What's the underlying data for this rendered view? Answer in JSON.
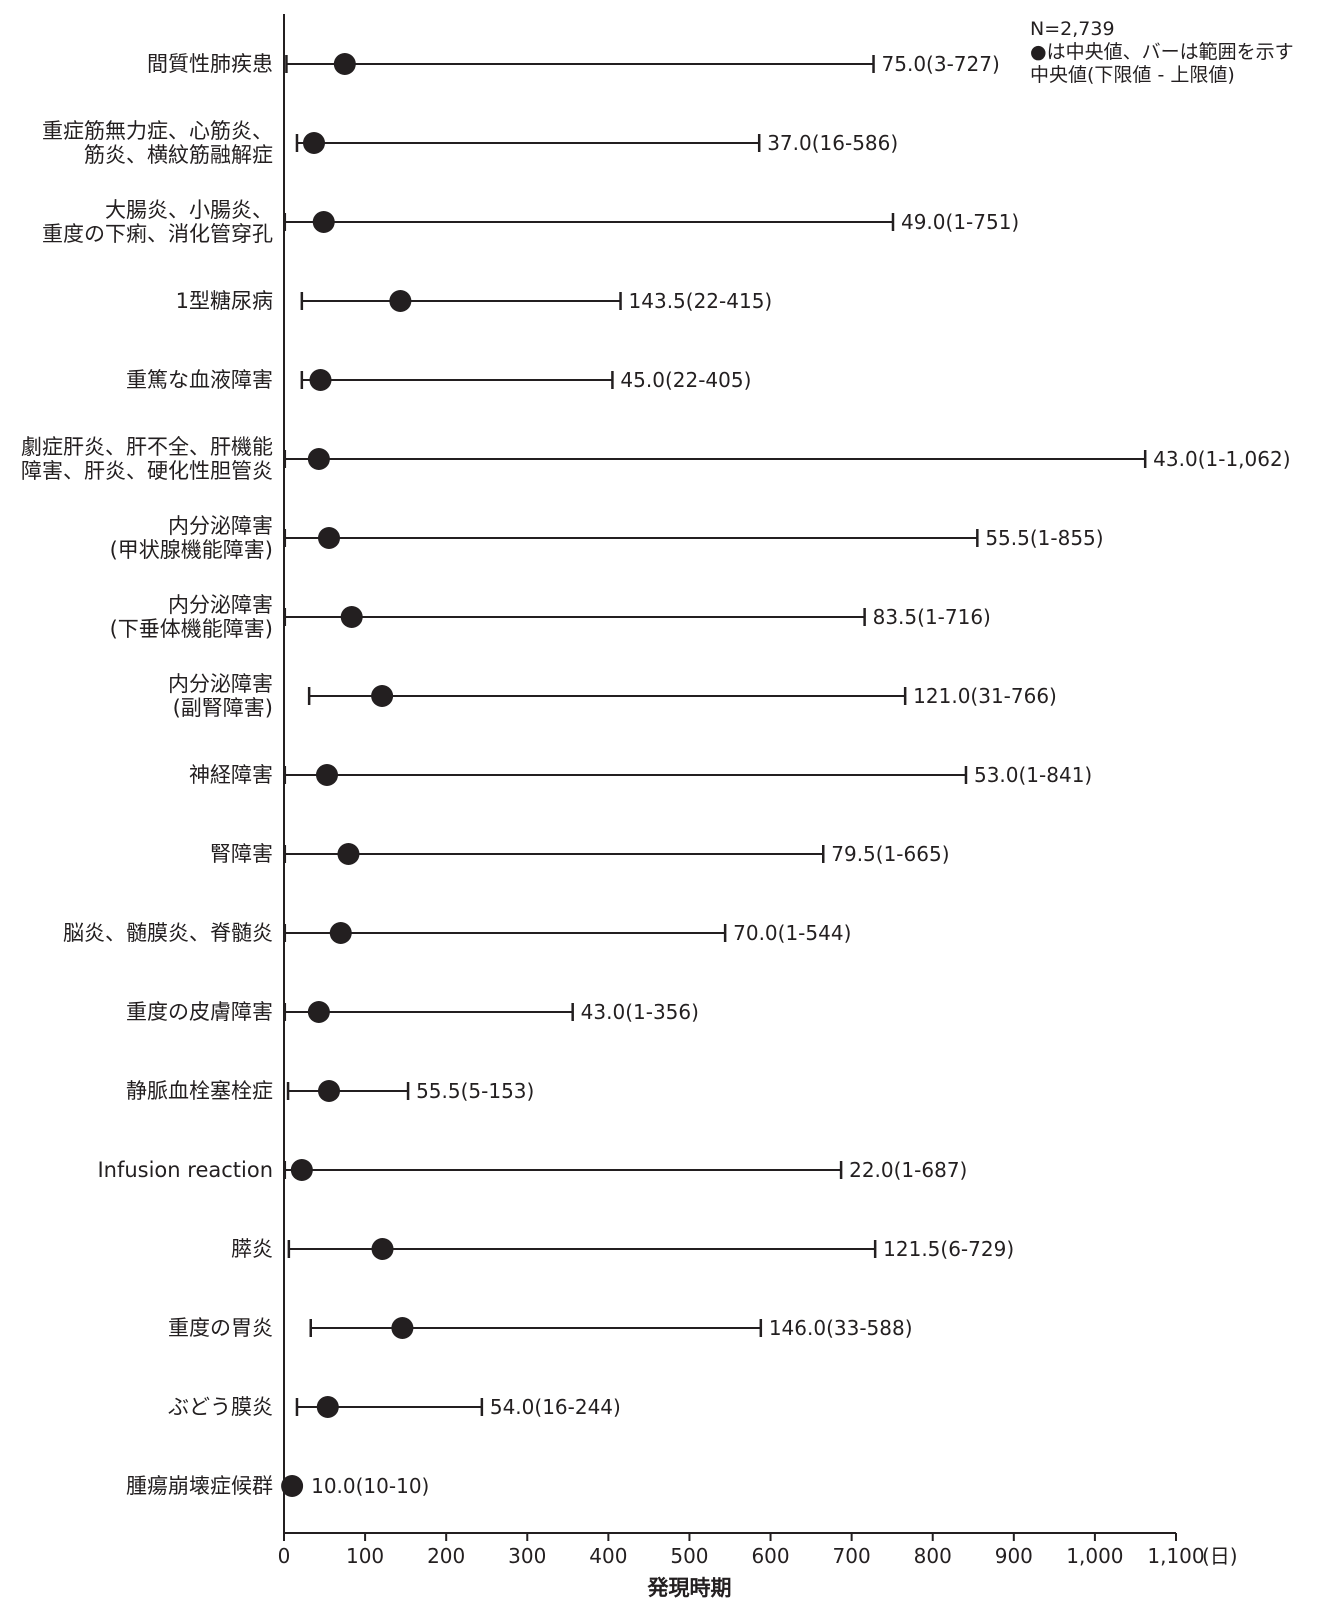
{
  "chart_data": {
    "type": "range-dot",
    "title": "",
    "xlabel": "発現時期",
    "xunit": "(日)",
    "xlim": [
      0,
      1100
    ],
    "xticks": [
      0,
      100,
      200,
      300,
      400,
      500,
      600,
      700,
      800,
      900,
      1000,
      1100
    ],
    "xtick_labels": [
      "0",
      "100",
      "200",
      "300",
      "400",
      "500",
      "600",
      "700",
      "800",
      "900",
      "1,000",
      "1,100"
    ],
    "legend": {
      "n": "N=2,739",
      "marker_note": "●は中央値、バーは範囲を示す",
      "format_note": "中央値(下限値 - 上限値)"
    },
    "rows": [
      {
        "label": [
          "間質性肺疾患"
        ],
        "median": 75.0,
        "min": 3,
        "max": 727,
        "text": "75.0(3-727)"
      },
      {
        "label": [
          "重症筋無力症、心筋炎、",
          "筋炎、横紋筋融解症"
        ],
        "median": 37.0,
        "min": 16,
        "max": 586,
        "text": "37.0(16-586)"
      },
      {
        "label": [
          "大腸炎、小腸炎、",
          "重度の下痢、消化管穿孔"
        ],
        "median": 49.0,
        "min": 1,
        "max": 751,
        "text": "49.0(1-751)"
      },
      {
        "label": [
          "1型糖尿病"
        ],
        "median": 143.5,
        "min": 22,
        "max": 415,
        "text": "143.5(22-415)"
      },
      {
        "label": [
          "重篤な血液障害"
        ],
        "median": 45.0,
        "min": 22,
        "max": 405,
        "text": "45.0(22-405)"
      },
      {
        "label": [
          "劇症肝炎、肝不全、肝機能",
          "障害、肝炎、硬化性胆管炎"
        ],
        "median": 43.0,
        "min": 1,
        "max": 1062,
        "text": "43.0(1-1,062)"
      },
      {
        "label": [
          "内分泌障害",
          "(甲状腺機能障害)"
        ],
        "median": 55.5,
        "min": 1,
        "max": 855,
        "text": "55.5(1-855)"
      },
      {
        "label": [
          "内分泌障害",
          "(下垂体機能障害)"
        ],
        "median": 83.5,
        "min": 1,
        "max": 716,
        "text": "83.5(1-716)"
      },
      {
        "label": [
          "内分泌障害",
          "(副腎障害)"
        ],
        "median": 121.0,
        "min": 31,
        "max": 766,
        "text": "121.0(31-766)"
      },
      {
        "label": [
          "神経障害"
        ],
        "median": 53.0,
        "min": 1,
        "max": 841,
        "text": "53.0(1-841)"
      },
      {
        "label": [
          "腎障害"
        ],
        "median": 79.5,
        "min": 1,
        "max": 665,
        "text": "79.5(1-665)"
      },
      {
        "label": [
          "脳炎、髄膜炎、脊髄炎"
        ],
        "median": 70.0,
        "min": 1,
        "max": 544,
        "text": "70.0(1-544)"
      },
      {
        "label": [
          "重度の皮膚障害"
        ],
        "median": 43.0,
        "min": 1,
        "max": 356,
        "text": "43.0(1-356)"
      },
      {
        "label": [
          "静脈血栓塞栓症"
        ],
        "median": 55.5,
        "min": 5,
        "max": 153,
        "text": "55.5(5-153)"
      },
      {
        "label": [
          "Infusion reaction"
        ],
        "median": 22.0,
        "min": 1,
        "max": 687,
        "text": "22.0(1-687)"
      },
      {
        "label": [
          "膵炎"
        ],
        "median": 121.5,
        "min": 6,
        "max": 729,
        "text": "121.5(6-729)"
      },
      {
        "label": [
          "重度の胃炎"
        ],
        "median": 146.0,
        "min": 33,
        "max": 588,
        "text": "146.0(33-588)"
      },
      {
        "label": [
          "ぶどう膜炎"
        ],
        "median": 54.0,
        "min": 16,
        "max": 244,
        "text": "54.0(16-244)"
      },
      {
        "label": [
          "腫瘍崩壊症候群"
        ],
        "median": 10.0,
        "min": 10,
        "max": 10,
        "text": "10.0(10-10)"
      }
    ],
    "colors": {
      "ink": "#231f20"
    }
  }
}
